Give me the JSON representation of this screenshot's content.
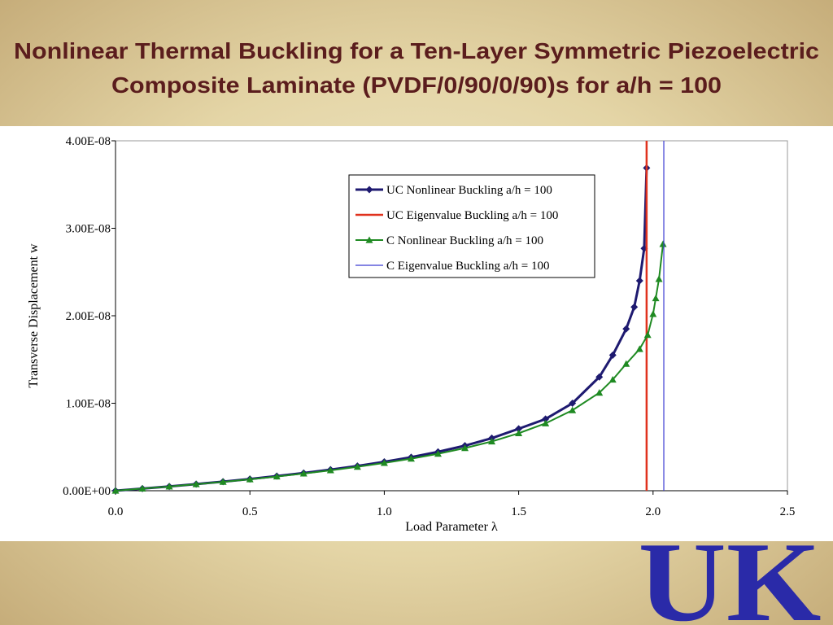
{
  "chart_data": {
    "type": "line",
    "title": [
      "Nonlinear Thermal Buckling for a Ten-Layer Symmetric Piezoelectric",
      "Composite Laminate (PVDF/0/90/0/90)s for a/h = 100"
    ],
    "x_label": "Load Parameter λ",
    "y_label": "Transverse Displacement w",
    "xlim": [
      0,
      2.5
    ],
    "ylim": [
      0,
      4e-08
    ],
    "xticks": [
      {
        "value": 0,
        "label": "0.0"
      },
      0.5,
      {
        "value": 1,
        "label": "1.0"
      },
      1.5,
      {
        "value": 2,
        "label": "2.0"
      },
      2.5
    ],
    "yticks": [
      {
        "value": 0,
        "label": "0.00E+00"
      },
      {
        "value": 1e-08,
        "label": "1.00E-08"
      },
      {
        "value": 2e-08,
        "label": "2.00E-08"
      },
      {
        "value": 3e-08,
        "label": "3.00E-08"
      },
      {
        "value": 4e-08,
        "label": "4.00E-08"
      }
    ],
    "legend": "top-center",
    "series": [
      {
        "name": "UC Nonlinear Buckling a/h = 100",
        "color": "#1e1a70",
        "marker": "diamond",
        "line_width": 3,
        "x": [
          0,
          0.1,
          0.2,
          0.3,
          0.4,
          0.5,
          0.6,
          0.7,
          0.8,
          0.9,
          1.0,
          1.1,
          1.2,
          1.3,
          1.4,
          1.5,
          1.6,
          1.7,
          1.8,
          1.85,
          1.9,
          1.93,
          1.95,
          1.967,
          1.976
        ],
        "values": [
          0,
          2.4e-10,
          4.9e-10,
          7.6e-10,
          1.04e-09,
          1.34e-09,
          1.67e-09,
          2.02e-09,
          2.41e-09,
          2.83e-09,
          3.3e-09,
          3.83e-09,
          4.44e-09,
          5.15e-09,
          6.01e-09,
          7.08e-09,
          8.2e-09,
          1e-08,
          1.3e-08,
          1.55e-08,
          1.85e-08,
          2.1e-08,
          2.4e-08,
          2.77e-08,
          3.69e-08
        ]
      },
      {
        "name": "UC Eigenvalue Buckling a/h = 100",
        "color": "#e0321e",
        "marker": "none",
        "line_width": 2.5,
        "x": [
          1.976,
          1.976
        ],
        "values": [
          0,
          4e-08
        ]
      },
      {
        "name": "C Nonlinear Buckling a/h = 100",
        "color": "#1f8a22",
        "marker": "triangle",
        "line_width": 2,
        "x": [
          0,
          0.1,
          0.2,
          0.3,
          0.4,
          0.5,
          0.6,
          0.7,
          0.8,
          0.9,
          1.0,
          1.1,
          1.2,
          1.3,
          1.4,
          1.5,
          1.6,
          1.7,
          1.8,
          1.85,
          1.9,
          1.95,
          1.98,
          2.0,
          2.01,
          2.022,
          2.037
        ],
        "values": [
          0,
          2.4e-10,
          4.8e-10,
          7.4e-10,
          1.01e-09,
          1.3e-09,
          1.62e-09,
          1.96e-09,
          2.33e-09,
          2.73e-09,
          3.17e-09,
          3.66e-09,
          4.22e-09,
          4.87e-09,
          5.63e-09,
          6.57e-09,
          7.7e-09,
          9.2e-09,
          1.12e-08,
          1.27e-08,
          1.45e-08,
          1.62e-08,
          1.78e-08,
          2.02e-08,
          2.2e-08,
          2.42e-08,
          2.82e-08
        ]
      },
      {
        "name": "C Eigenvalue Buckling a/h = 100",
        "color": "#3c3cd2",
        "marker": "none",
        "line_width": 1.2,
        "x": [
          2.04,
          2.04
        ],
        "values": [
          0,
          4e-08
        ]
      }
    ]
  },
  "logo": "UK"
}
